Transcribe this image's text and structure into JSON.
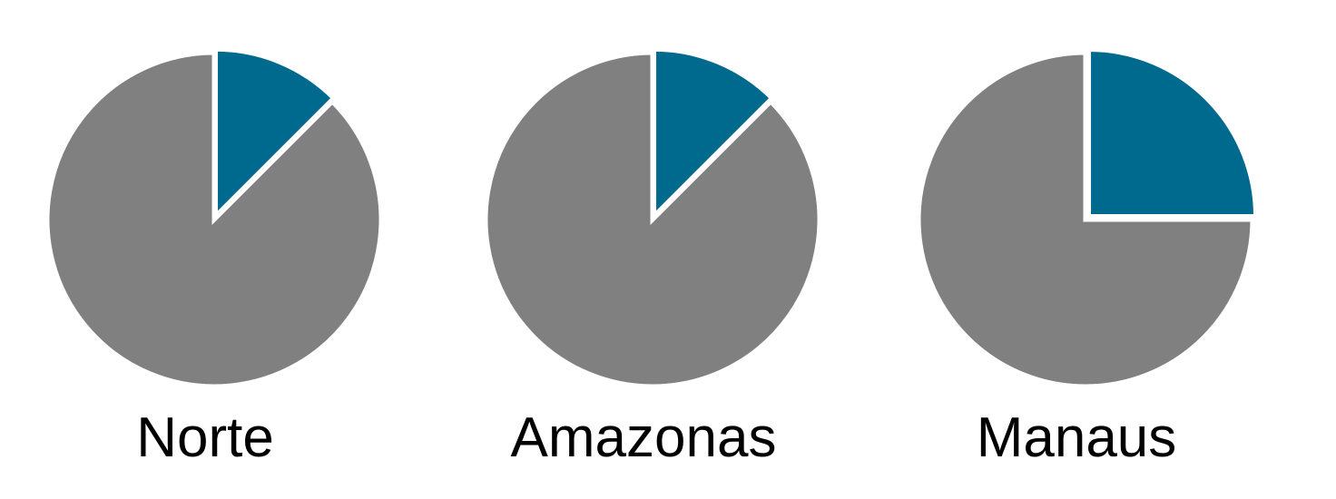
{
  "chart_data": [
    {
      "type": "pie",
      "label": "Norte",
      "slices": [
        {
          "value": 12.5,
          "color": "#006a8e"
        },
        {
          "value": 87.5,
          "color": "#808080"
        }
      ]
    },
    {
      "type": "pie",
      "label": "Amazonas",
      "slices": [
        {
          "value": 12.5,
          "color": "#006a8e"
        },
        {
          "value": 87.5,
          "color": "#808080"
        }
      ]
    },
    {
      "type": "pie",
      "label": "Manaus",
      "slices": [
        {
          "value": 25,
          "color": "#006a8e"
        },
        {
          "value": 75,
          "color": "#808080"
        }
      ]
    }
  ]
}
